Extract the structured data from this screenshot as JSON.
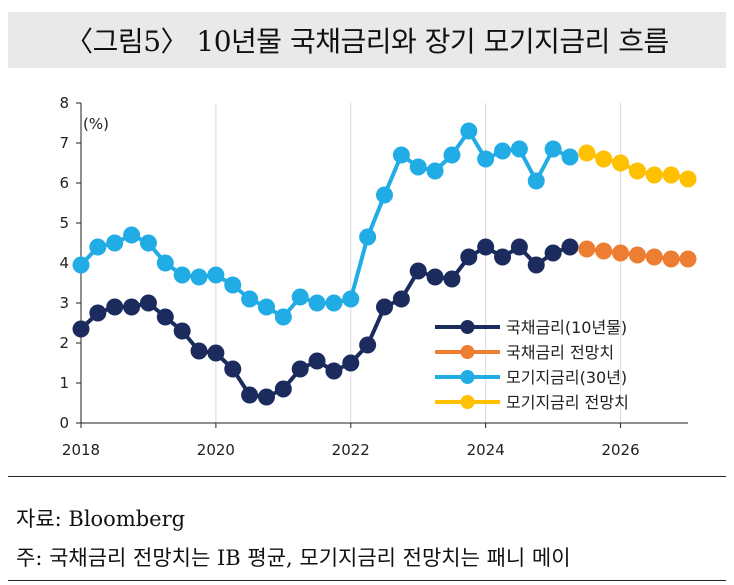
{
  "header": {
    "title": "〈그림5〉 10년물 국채금리와 장기 모기지금리 흐름"
  },
  "footer": {
    "source": "자료: Bloomberg",
    "note": "주: 국채금리 전망치는 IB 평균, 모기지금리 전망치는 패니 메이"
  },
  "chart_data": {
    "type": "line",
    "unit_label": "(%)",
    "xlim": [
      2018,
      2027
    ],
    "ylim": [
      0,
      8
    ],
    "x_ticks": [
      "2018",
      "2020",
      "2022",
      "2024",
      "2026"
    ],
    "y_ticks": [
      "0",
      "1",
      "2",
      "3",
      "4",
      "5",
      "6",
      "7",
      "8"
    ],
    "grid": "vertical",
    "legend_position": "bottom-right",
    "series": [
      {
        "name": "국채금리(10년물)",
        "color": "#1c2b5e",
        "x": [
          2018.0,
          2018.25,
          2018.5,
          2018.75,
          2019.0,
          2019.25,
          2019.5,
          2019.75,
          2020.0,
          2020.25,
          2020.5,
          2020.75,
          2021.0,
          2021.25,
          2021.5,
          2021.75,
          2022.0,
          2022.25,
          2022.5,
          2022.75,
          2023.0,
          2023.25,
          2023.5,
          2023.75,
          2024.0,
          2024.25,
          2024.5,
          2024.75,
          2025.0,
          2025.25
        ],
        "y": [
          2.35,
          2.75,
          2.9,
          2.9,
          3.0,
          2.65,
          2.3,
          1.8,
          1.75,
          1.35,
          0.7,
          0.65,
          0.85,
          1.35,
          1.55,
          1.3,
          1.5,
          1.95,
          2.9,
          3.1,
          3.8,
          3.65,
          3.6,
          4.15,
          4.4,
          4.15,
          4.4,
          3.95,
          4.25,
          4.4
        ]
      },
      {
        "name": "국채금리 전망치",
        "color": "#ed7d31",
        "x": [
          2025.5,
          2025.75,
          2026.0,
          2026.25,
          2026.5,
          2026.75,
          2027.0
        ],
        "y": [
          4.35,
          4.3,
          4.25,
          4.2,
          4.15,
          4.1,
          4.1
        ]
      },
      {
        "name": "모기지금리(30년)",
        "color": "#21ace6",
        "x": [
          2018.0,
          2018.25,
          2018.5,
          2018.75,
          2019.0,
          2019.25,
          2019.5,
          2019.75,
          2020.0,
          2020.25,
          2020.5,
          2020.75,
          2021.0,
          2021.25,
          2021.5,
          2021.75,
          2022.0,
          2022.25,
          2022.5,
          2022.75,
          2023.0,
          2023.25,
          2023.5,
          2023.75,
          2024.0,
          2024.25,
          2024.5,
          2024.75,
          2025.0,
          2025.25
        ],
        "y": [
          3.95,
          4.4,
          4.5,
          4.7,
          4.5,
          4.0,
          3.7,
          3.65,
          3.7,
          3.45,
          3.1,
          2.9,
          2.65,
          3.15,
          3.0,
          3.0,
          3.1,
          4.65,
          5.7,
          6.7,
          6.4,
          6.3,
          6.7,
          7.3,
          6.6,
          6.8,
          6.85,
          6.05,
          6.85,
          6.65
        ]
      },
      {
        "name": "모기지금리 전망치",
        "color": "#ffc000",
        "x": [
          2025.5,
          2025.75,
          2026.0,
          2026.25,
          2026.5,
          2026.75,
          2027.0
        ],
        "y": [
          6.75,
          6.6,
          6.5,
          6.3,
          6.2,
          6.2,
          6.1
        ]
      }
    ]
  }
}
